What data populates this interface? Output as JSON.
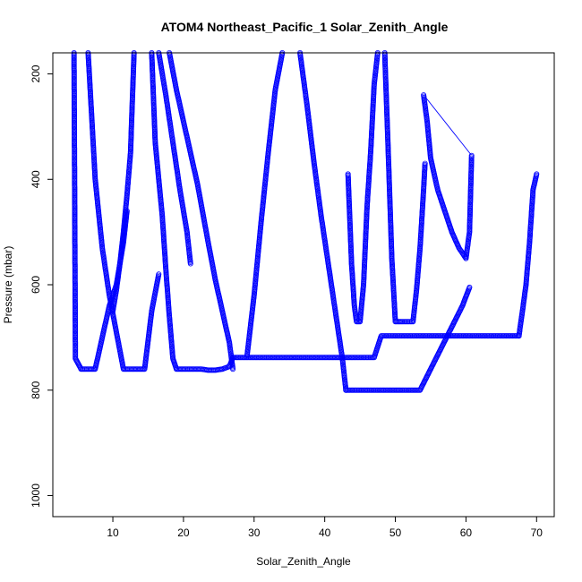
{
  "chart_data": {
    "type": "scatter",
    "title": "ATOM4 Northeast_Pacific_1 Solar_Zenith_Angle",
    "xlabel": "Solar_Zenith_Angle",
    "ylabel": "Pressure (mbar)",
    "xlim": [
      1.5,
      72.5
    ],
    "ylim": [
      1040,
      160
    ],
    "y_reversed": true,
    "xticks": [
      10,
      20,
      30,
      40,
      50,
      60,
      70
    ],
    "yticks": [
      200,
      400,
      600,
      800,
      1000
    ],
    "marker": "open-circle",
    "color": "#0000ff",
    "grid": false,
    "legend": "none",
    "segments": [
      {
        "x": [
          4.5,
          4.7,
          5.5,
          6.5,
          7.5,
          8.5,
          9.5,
          10.5,
          11.5,
          12.0
        ],
        "y": [
          160,
          740,
          760,
          760,
          760,
          700,
          640,
          600,
          520,
          460
        ]
      },
      {
        "x": [
          6.5,
          7.5,
          8.5,
          9.5,
          10.5,
          11.5,
          12.5,
          13.5,
          14.5,
          15.5,
          16.5
        ],
        "y": [
          160,
          400,
          530,
          620,
          690,
          760,
          760,
          760,
          760,
          650,
          580
        ]
      },
      {
        "x": [
          13.0,
          12.5,
          12.0,
          11.5,
          11.0,
          10.5,
          10.0
        ],
        "y": [
          160,
          350,
          430,
          500,
          560,
          610,
          650
        ]
      },
      {
        "x": [
          15.5,
          16.0,
          17.0,
          17.5,
          18.0,
          18.5,
          19.0,
          19.5,
          20.5,
          21.5,
          22.5,
          23.5,
          24.5,
          25.5,
          26.5,
          27.0
        ],
        "y": [
          160,
          330,
          470,
          570,
          660,
          740,
          760,
          760,
          760,
          760,
          760,
          762,
          762,
          760,
          755,
          738
        ]
      },
      {
        "x": [
          16.5,
          17.5,
          18.5,
          19.5,
          20.5,
          21.0
        ],
        "y": [
          160,
          240,
          330,
          420,
          500,
          560
        ]
      },
      {
        "x": [
          18.0,
          19.0,
          20.5,
          22.0,
          23.5,
          24.5,
          25.5,
          26.5,
          27.0
        ],
        "y": [
          160,
          230,
          320,
          410,
          520,
          590,
          650,
          710,
          760
        ]
      },
      {
        "x": [
          27.0,
          30.0,
          34.0,
          38.0,
          42.0,
          45.0,
          47.0,
          48.0,
          50.0,
          55.0,
          60.0,
          65.0,
          67.5
        ],
        "y": [
          738,
          738,
          738,
          738,
          738,
          738,
          738,
          697,
          697,
          697,
          697,
          697,
          697
        ]
      },
      {
        "x": [
          29.0,
          30.0,
          31.0,
          32.0,
          33.0,
          34.0
        ],
        "y": [
          735,
          620,
          480,
          350,
          230,
          160
        ]
      },
      {
        "x": [
          36.5,
          37.5,
          38.5,
          39.5,
          40.5,
          41.5,
          42.5,
          43.0
        ],
        "y": [
          160,
          260,
          370,
          470,
          560,
          650,
          740,
          800
        ]
      },
      {
        "x": [
          43.0,
          45.0,
          48.0,
          51.0,
          53.5,
          55.0,
          56.5,
          58.0,
          59.5,
          60.5
        ],
        "y": [
          800,
          800,
          800,
          800,
          800,
          760,
          720,
          680,
          640,
          605
        ]
      },
      {
        "x": [
          43.3,
          43.8,
          44.2,
          44.5,
          45.0,
          45.5,
          46.0,
          46.5,
          47.0,
          47.5
        ],
        "y": [
          390,
          560,
          640,
          670,
          670,
          600,
          450,
          350,
          220,
          160
        ]
      },
      {
        "x": [
          48.5,
          49.0,
          49.5,
          50.0,
          51.0,
          52.5,
          53.0,
          53.5,
          54.0,
          54.2
        ],
        "y": [
          160,
          350,
          550,
          670,
          670,
          670,
          610,
          530,
          420,
          370
        ]
      },
      {
        "x": [
          54.0,
          54.5,
          55.0,
          56.0,
          57.0,
          58.0,
          59.0,
          60.0,
          60.5,
          60.8
        ],
        "y": [
          240,
          290,
          360,
          420,
          460,
          500,
          530,
          550,
          500,
          355
        ]
      },
      {
        "x": [
          67.5,
          68.0,
          68.5,
          69.0,
          69.5,
          70.0
        ],
        "y": [
          697,
          650,
          600,
          520,
          420,
          390
        ]
      }
    ],
    "line_segment": {
      "x": [
        54.2,
        60.7
      ],
      "y": [
        243,
        353
      ]
    }
  }
}
